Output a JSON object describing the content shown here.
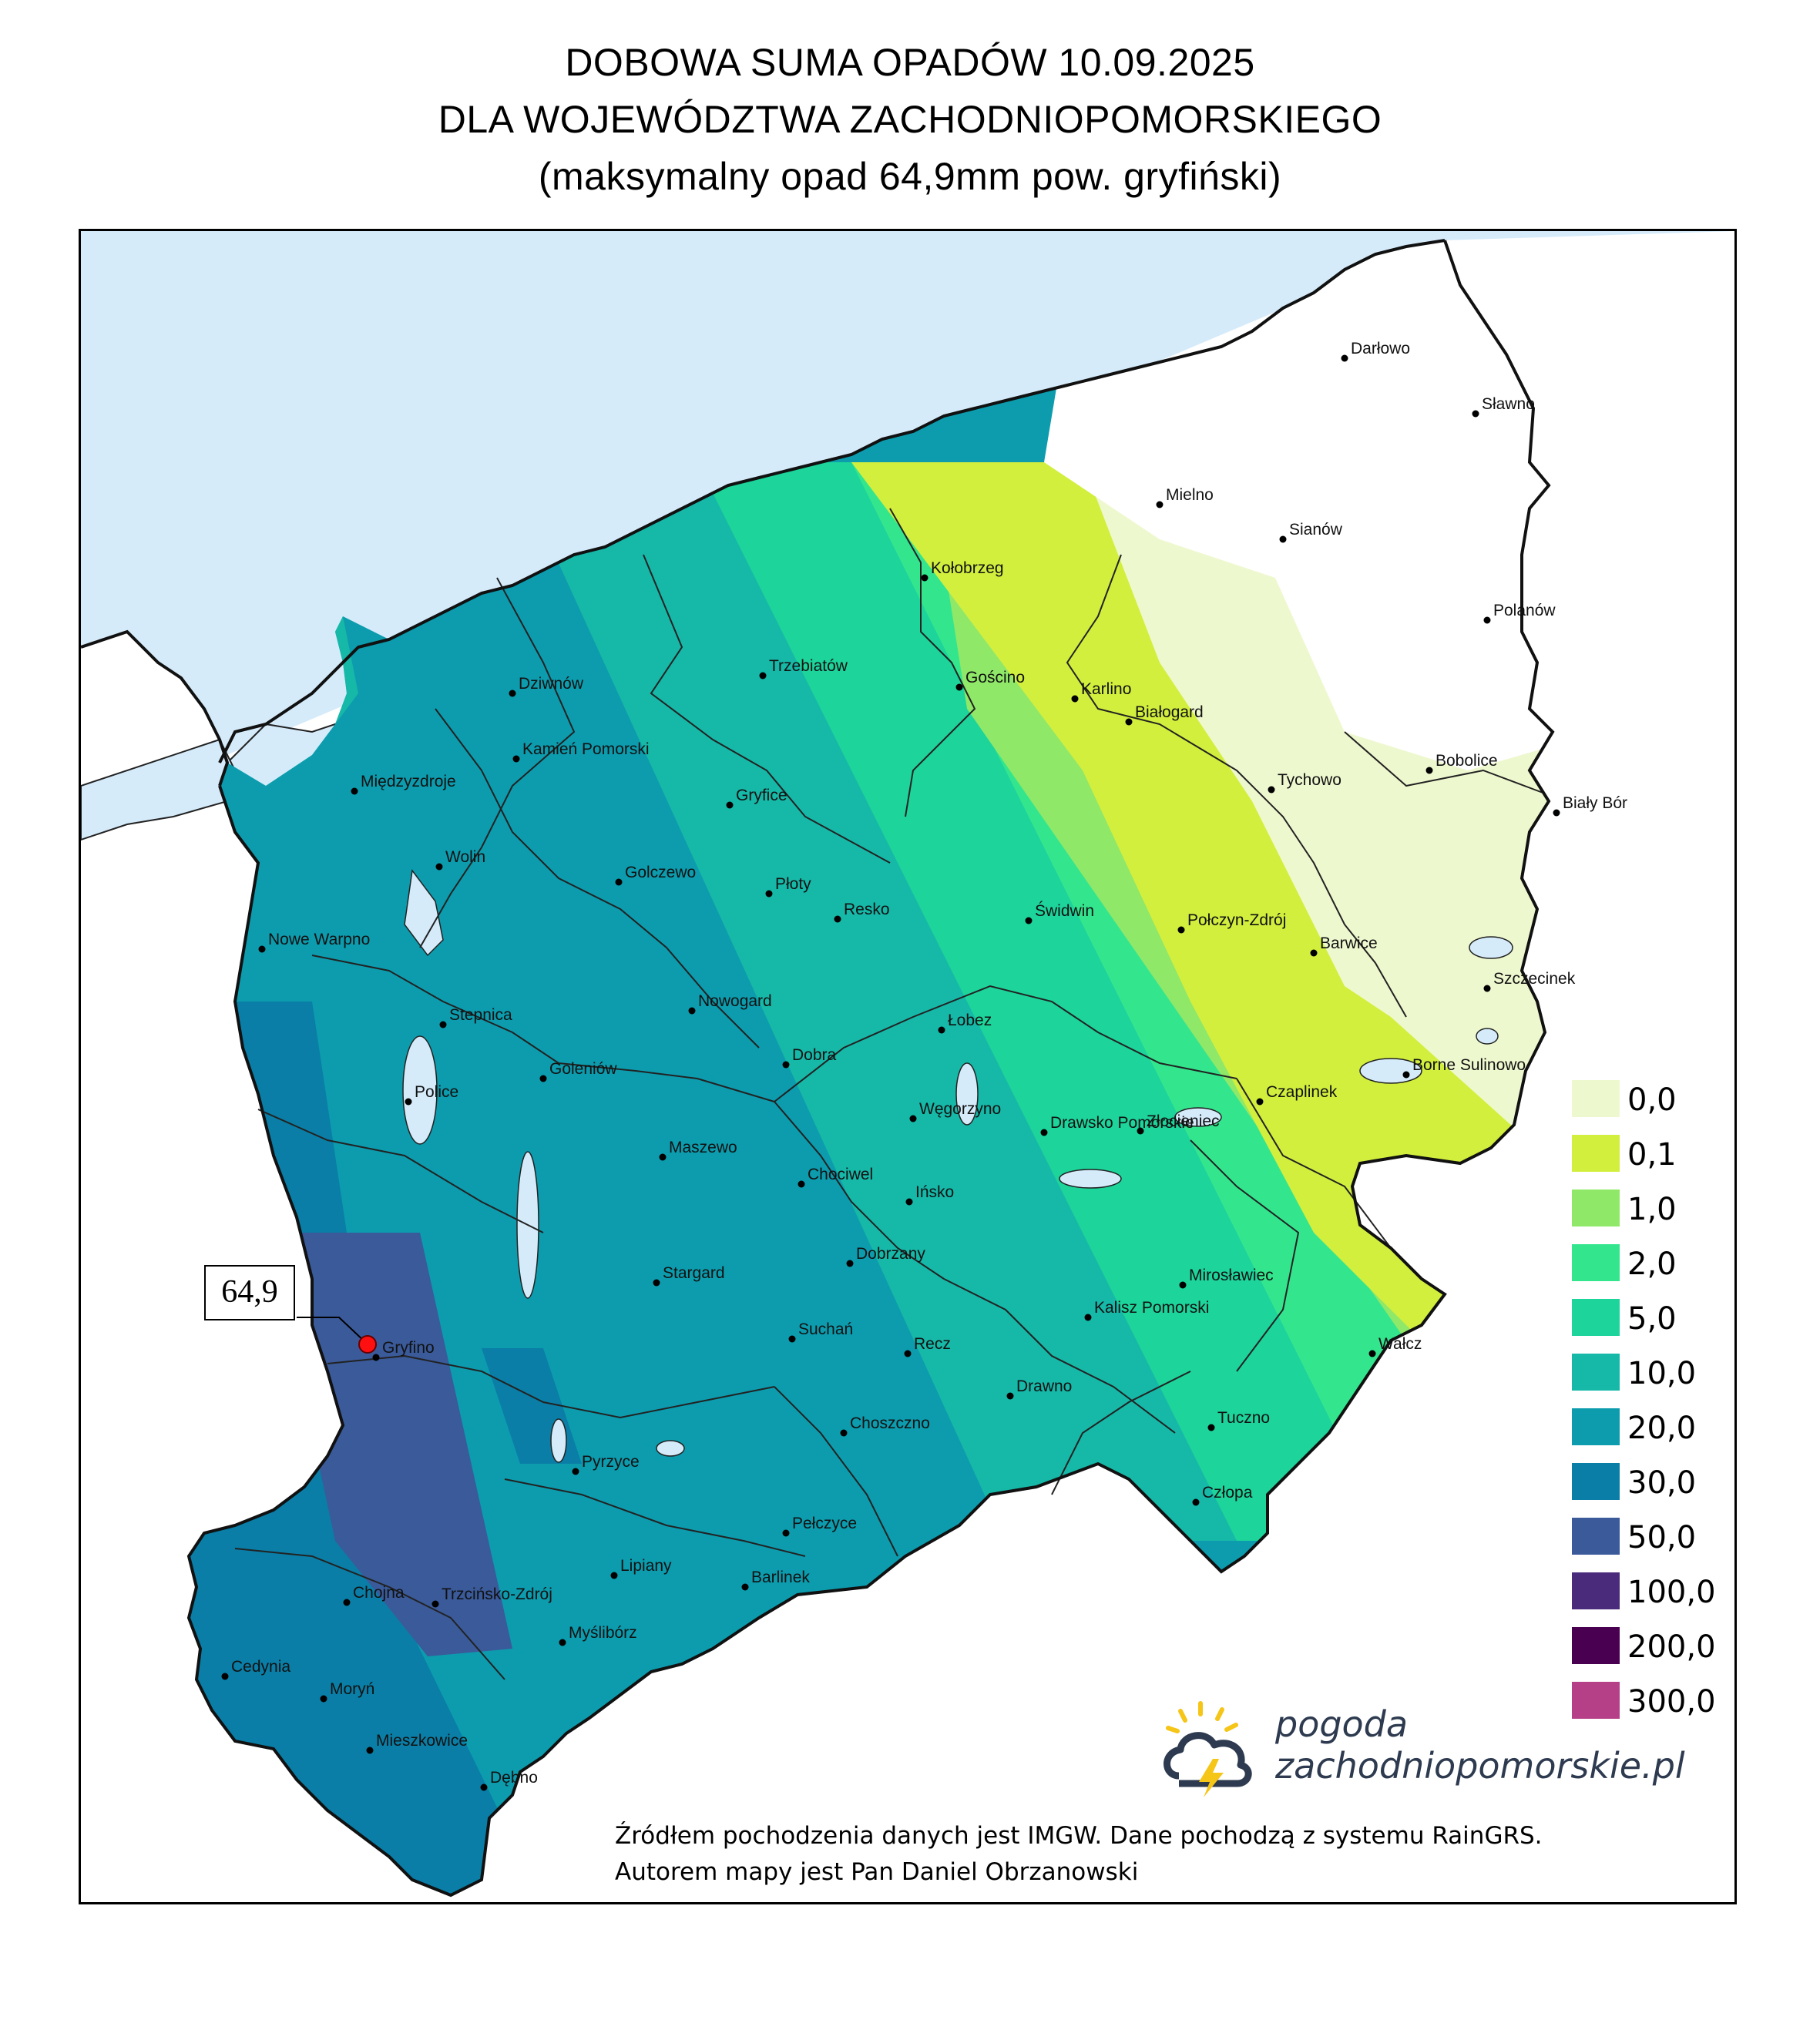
{
  "title": {
    "line1": "DOBOWA SUMA OPADÓW 10.09.2025",
    "line2": "DLA WOJEWÓDZTWA ZACHODNIOPOMORSKIEGO",
    "line3": "(maksymalny opad 64,9mm pow. gryfiński)"
  },
  "max_marker": {
    "label": "64,9",
    "color": "#ff1010"
  },
  "legend": [
    {
      "label": "0,0",
      "color": "#eef8cf"
    },
    {
      "label": "0,1",
      "color": "#d2ef3e"
    },
    {
      "label": "1,0",
      "color": "#8fe868"
    },
    {
      "label": "2,0",
      "color": "#33e68e"
    },
    {
      "label": "5,0",
      "color": "#1dd49b"
    },
    {
      "label": "10,0",
      "color": "#16b8a8"
    },
    {
      "label": "20,0",
      "color": "#0c9cae"
    },
    {
      "label": "30,0",
      "color": "#0a7ea6"
    },
    {
      "label": "50,0",
      "color": "#3a5a9a"
    },
    {
      "label": "100,0",
      "color": "#4a2a7a"
    },
    {
      "label": "200,0",
      "color": "#4a0050"
    },
    {
      "label": "300,0",
      "color": "#b64088"
    }
  ],
  "cities": [
    {
      "name": "Darłowo"
    },
    {
      "name": "Sławno"
    },
    {
      "name": "Mielno"
    },
    {
      "name": "Sianów"
    },
    {
      "name": "Kołobrzeg"
    },
    {
      "name": "Polanów"
    },
    {
      "name": "Trzebiatów"
    },
    {
      "name": "Gościno"
    },
    {
      "name": "Karlino"
    },
    {
      "name": "Białogard"
    },
    {
      "name": "Dziwnów"
    },
    {
      "name": "Kamień Pomorski"
    },
    {
      "name": "Bobolice"
    },
    {
      "name": "Tychowo"
    },
    {
      "name": "Międzyzdroje"
    },
    {
      "name": "Gryfice"
    },
    {
      "name": "Biały Bór"
    },
    {
      "name": "Wolin"
    },
    {
      "name": "Golczewo"
    },
    {
      "name": "Płoty"
    },
    {
      "name": "Resko"
    },
    {
      "name": "Świdwin"
    },
    {
      "name": "Połczyn-Zdrój"
    },
    {
      "name": "Barwice"
    },
    {
      "name": "Nowe Warpno"
    },
    {
      "name": "Szczecinek"
    },
    {
      "name": "Nowogard"
    },
    {
      "name": "Stepnica"
    },
    {
      "name": "Łobez"
    },
    {
      "name": "Dobra"
    },
    {
      "name": "Goleniów"
    },
    {
      "name": "Borne Sulinowo"
    },
    {
      "name": "Police"
    },
    {
      "name": "Czaplinek"
    },
    {
      "name": "Węgorzyno"
    },
    {
      "name": "Złocieniec"
    },
    {
      "name": "Drawsko Pomorskie"
    },
    {
      "name": "Maszewo"
    },
    {
      "name": "Chociwel"
    },
    {
      "name": "Ińsko"
    },
    {
      "name": "Dobrzany"
    },
    {
      "name": "Stargard"
    },
    {
      "name": "Mirosławiec"
    },
    {
      "name": "Kalisz Pomorski"
    },
    {
      "name": "Suchań"
    },
    {
      "name": "Recz"
    },
    {
      "name": "Wałcz"
    },
    {
      "name": "Gryfino"
    },
    {
      "name": "Drawno"
    },
    {
      "name": "Tuczno"
    },
    {
      "name": "Choszczno"
    },
    {
      "name": "Pyrzyce"
    },
    {
      "name": "Człopa"
    },
    {
      "name": "Pełczyce"
    },
    {
      "name": "Lipiany"
    },
    {
      "name": "Barlinek"
    },
    {
      "name": "Chojna"
    },
    {
      "name": "Trzcińsko-Zdrój"
    },
    {
      "name": "Myślibórz"
    },
    {
      "name": "Cedynia"
    },
    {
      "name": "Moryń"
    },
    {
      "name": "Mieszkowice"
    },
    {
      "name": "Dębno"
    }
  ],
  "brand": {
    "line1": "pogoda",
    "line2": "zachodniopomorskie.pl"
  },
  "credits": {
    "line1": "Źródłem pochodzenia danych jest IMGW. Dane pochodzą z systemu RainGRS.",
    "line2": "Autorem mapy jest Pan Daniel Obrzanowski"
  }
}
